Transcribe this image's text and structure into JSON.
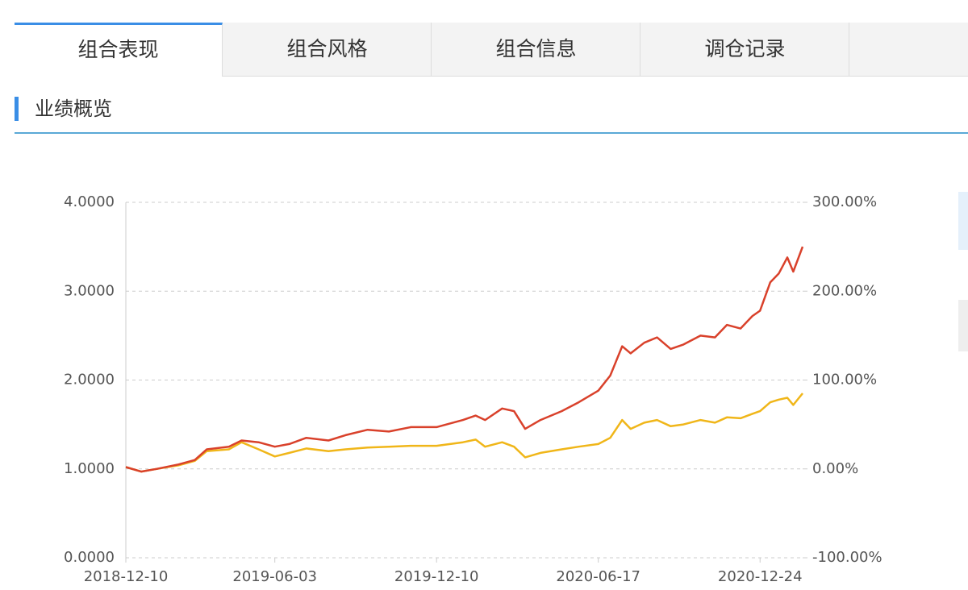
{
  "tabs": [
    "组合表现",
    "组合风格",
    "组合信息",
    "调仓记录"
  ],
  "active_tab": 0,
  "section_title": "业绩概览",
  "chart_data": {
    "type": "line",
    "x": [
      "2018-12-10",
      "2018-12-28",
      "2019-01-15",
      "2019-02-10",
      "2019-03-01",
      "2019-03-15",
      "2019-04-10",
      "2019-04-25",
      "2019-05-15",
      "2019-06-03",
      "2019-06-20",
      "2019-07-10",
      "2019-08-05",
      "2019-08-25",
      "2019-09-20",
      "2019-10-15",
      "2019-11-10",
      "2019-12-10",
      "2020-01-10",
      "2020-01-25",
      "2020-02-05",
      "2020-02-25",
      "2020-03-10",
      "2020-03-23",
      "2020-04-10",
      "2020-05-05",
      "2020-05-25",
      "2020-06-17",
      "2020-07-01",
      "2020-07-15",
      "2020-07-25",
      "2020-08-10",
      "2020-08-25",
      "2020-09-10",
      "2020-09-25",
      "2020-10-15",
      "2020-11-01",
      "2020-11-15",
      "2020-12-01",
      "2020-12-15",
      "2020-12-24",
      "2021-01-05",
      "2021-01-15",
      "2021-01-25",
      "2021-02-01",
      "2021-02-12"
    ],
    "xlim": [
      "2018-12-10",
      "2021-02-12"
    ],
    "xticks": [
      "2018-12-10",
      "2019-06-03",
      "2019-12-10",
      "2020-06-17",
      "2020-12-24"
    ],
    "series": [
      {
        "color": "#d9412b",
        "values": [
          1.02,
          0.97,
          1.0,
          1.05,
          1.1,
          1.22,
          1.25,
          1.32,
          1.3,
          1.25,
          1.28,
          1.35,
          1.32,
          1.38,
          1.44,
          1.42,
          1.47,
          1.47,
          1.55,
          1.6,
          1.55,
          1.68,
          1.65,
          1.45,
          1.55,
          1.65,
          1.75,
          1.88,
          2.05,
          2.38,
          2.3,
          2.42,
          2.48,
          2.35,
          2.4,
          2.5,
          2.48,
          2.62,
          2.58,
          2.72,
          2.78,
          3.1,
          3.2,
          3.38,
          3.22,
          3.5
        ]
      },
      {
        "color": "#f0b619",
        "values": [
          1.02,
          0.97,
          1.0,
          1.04,
          1.09,
          1.2,
          1.22,
          1.3,
          1.22,
          1.14,
          1.18,
          1.23,
          1.2,
          1.22,
          1.24,
          1.25,
          1.26,
          1.26,
          1.3,
          1.33,
          1.25,
          1.3,
          1.25,
          1.13,
          1.18,
          1.22,
          1.25,
          1.28,
          1.35,
          1.55,
          1.45,
          1.52,
          1.55,
          1.48,
          1.5,
          1.55,
          1.52,
          1.58,
          1.57,
          1.62,
          1.65,
          1.75,
          1.78,
          1.8,
          1.72,
          1.85
        ]
      }
    ],
    "ylim": [
      0,
      4
    ],
    "yticks": [
      {
        "value": 0,
        "label": "0.0000"
      },
      {
        "value": 1,
        "label": "1.0000"
      },
      {
        "value": 2,
        "label": "2.0000"
      },
      {
        "value": 3,
        "label": "3.0000"
      },
      {
        "value": 4,
        "label": "4.0000"
      }
    ],
    "y2lim": [
      -100,
      300
    ],
    "y2ticks": [
      {
        "value": -100,
        "label": "-100.00%"
      },
      {
        "value": 0,
        "label": "0.00%"
      },
      {
        "value": 100,
        "label": "100.00%"
      },
      {
        "value": 200,
        "label": "200.00%"
      },
      {
        "value": 300,
        "label": "300.00%"
      }
    ],
    "grid": true
  }
}
